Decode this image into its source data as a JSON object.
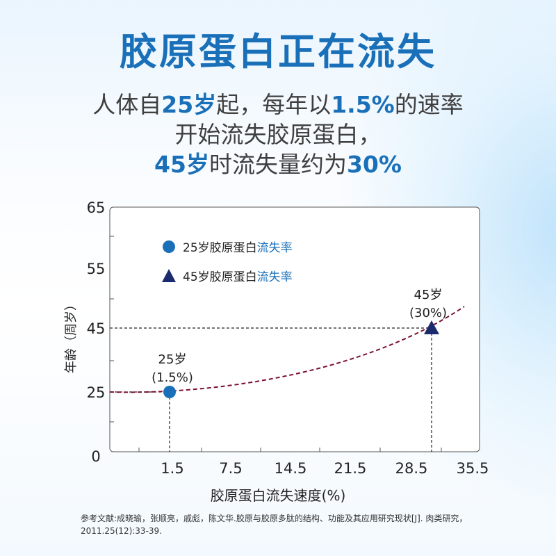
{
  "header": {
    "title": "胶原蛋白正在流失",
    "line1": [
      "人体自",
      "25岁",
      "起，每年以",
      "1.5%",
      "的速率"
    ],
    "line2": "开始流失胶原蛋白，",
    "line3": [
      "45岁",
      "时流失量约为",
      "30%"
    ]
  },
  "chart_data": {
    "type": "line",
    "xlabel": "胶原蛋白流失速度(%)",
    "ylabel": "年龄（周岁）",
    "x_ticks": [
      "1.5",
      "7.5",
      "14.5",
      "21.5",
      "28.5",
      "35.5"
    ],
    "y_ticks": [
      "0",
      "25",
      "45",
      "55",
      "65"
    ],
    "series": [
      {
        "name": "25岁胶原蛋白流失率",
        "marker": "circle",
        "color": "#1a70b8"
      },
      {
        "name": "45岁胶原蛋白流失率",
        "marker": "triangle",
        "color": "#1c2a6e"
      }
    ],
    "points": [
      {
        "x": 1.5,
        "y": 25,
        "label_age": "25岁",
        "label_rate": "(1.5%)"
      },
      {
        "x": 30,
        "y": 45,
        "label_age": "45岁",
        "label_rate": "(30%)"
      }
    ],
    "legend": [
      {
        "prefix": "25岁胶原蛋白",
        "highlight": "流失率"
      },
      {
        "prefix": "45岁胶原蛋白",
        "highlight": "流失率"
      }
    ],
    "curve_color": "#7a1030",
    "grid": false,
    "legend_position": "top-left"
  },
  "reference": "参考文献:成晓瑜，张顺亮，戚彪，陈文华.胶原与胶原多肽的结构、功能及其应用研究现状[J]. 肉类研究，2011.25(12):33-39."
}
